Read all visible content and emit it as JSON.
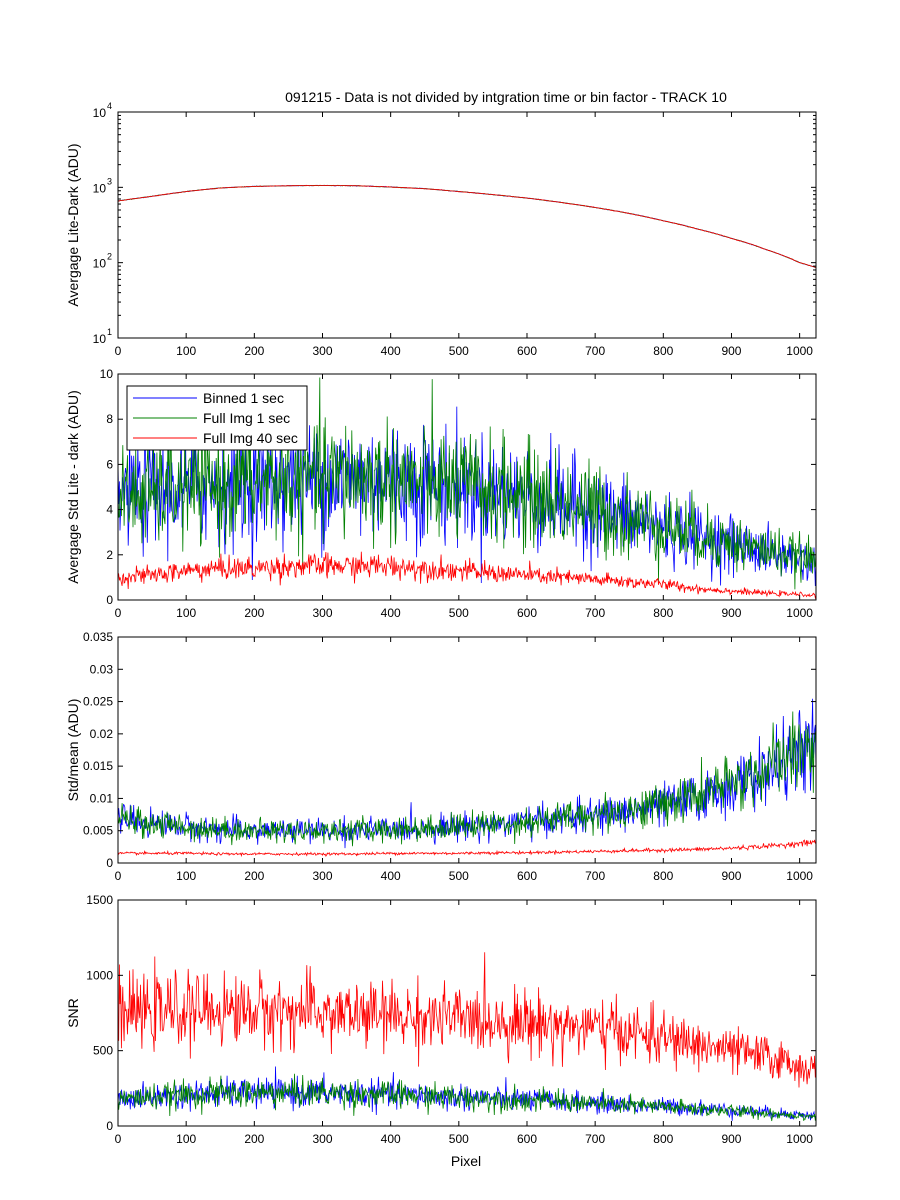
{
  "figure": {
    "background": "#ffffff"
  },
  "chart_data": [
    {
      "type": "line",
      "title": "091215 - Data is not divided by intgration time or bin factor - TRACK 10",
      "xlabel": "",
      "ylabel": "Avergage Lite-Dark (ADU)",
      "xlim": [
        0,
        1024
      ],
      "ylim": [
        10,
        10000
      ],
      "yscale": "log",
      "xticks": [
        0,
        100,
        200,
        300,
        400,
        500,
        600,
        700,
        800,
        900,
        1000
      ],
      "yticks": [
        {
          "v": 10,
          "base": "10",
          "exp": "1"
        },
        {
          "v": 100,
          "base": "10",
          "exp": "2"
        },
        {
          "v": 1000,
          "base": "10",
          "exp": "3"
        },
        {
          "v": 10000,
          "base": "10",
          "exp": "4"
        }
      ],
      "grid": false,
      "series": [
        {
          "color": "#0000ff",
          "x": [
            0,
            50,
            100,
            150,
            200,
            250,
            300,
            350,
            400,
            450,
            500,
            550,
            600,
            650,
            700,
            750,
            800,
            850,
            900,
            950,
            1000,
            1024
          ],
          "values": [
            660,
            760,
            880,
            980,
            1030,
            1050,
            1060,
            1050,
            1010,
            960,
            880,
            800,
            720,
            630,
            540,
            450,
            360,
            280,
            210,
            150,
            100,
            86
          ]
        },
        {
          "color": "#008000",
          "x": [
            0,
            50,
            100,
            150,
            200,
            250,
            300,
            350,
            400,
            450,
            500,
            550,
            600,
            650,
            700,
            750,
            800,
            850,
            900,
            950,
            1000,
            1024
          ],
          "values": [
            660,
            760,
            880,
            980,
            1030,
            1050,
            1060,
            1050,
            1010,
            960,
            880,
            800,
            720,
            630,
            540,
            450,
            360,
            280,
            210,
            150,
            100,
            86
          ]
        },
        {
          "color": "#ff0000",
          "x": [
            0,
            50,
            100,
            150,
            200,
            250,
            300,
            350,
            400,
            450,
            500,
            550,
            600,
            650,
            700,
            750,
            800,
            850,
            900,
            950,
            1000,
            1024
          ],
          "values": [
            660,
            760,
            880,
            980,
            1030,
            1050,
            1060,
            1050,
            1010,
            960,
            880,
            800,
            720,
            630,
            540,
            450,
            360,
            280,
            210,
            150,
            100,
            86
          ]
        }
      ]
    },
    {
      "type": "line",
      "title": "",
      "xlabel": "",
      "ylabel": "Avergage Std Lite - dark (ADU)",
      "xlim": [
        0,
        1024
      ],
      "ylim": [
        0,
        10
      ],
      "xticks": [
        0,
        100,
        200,
        300,
        400,
        500,
        600,
        700,
        800,
        900,
        1000
      ],
      "yticks": [
        0,
        2,
        4,
        6,
        8,
        10
      ],
      "grid": false,
      "legend_position": "top-left",
      "series": [
        {
          "name": "Binned 1 sec",
          "color": "#0000ff",
          "x": [
            0,
            50,
            100,
            150,
            200,
            250,
            300,
            350,
            400,
            450,
            500,
            550,
            600,
            650,
            700,
            750,
            800,
            850,
            900,
            950,
            1000,
            1024
          ],
          "values": [
            4.6,
            4.8,
            4.9,
            5.1,
            5.2,
            5.3,
            5.4,
            5.4,
            5.3,
            5.2,
            5.0,
            4.8,
            4.6,
            4.3,
            3.9,
            3.6,
            3.2,
            2.8,
            2.5,
            2.1,
            1.8,
            1.6
          ]
        },
        {
          "name": "Full Img 1 sec",
          "color": "#008000",
          "x": [
            0,
            50,
            100,
            150,
            200,
            250,
            300,
            350,
            400,
            450,
            500,
            550,
            600,
            650,
            700,
            750,
            800,
            850,
            900,
            950,
            1000,
            1024
          ],
          "values": [
            4.5,
            4.7,
            4.9,
            5.1,
            5.2,
            5.3,
            5.4,
            5.4,
            5.3,
            5.2,
            5.0,
            4.8,
            4.6,
            4.3,
            4.0,
            3.6,
            3.3,
            2.9,
            2.5,
            2.2,
            1.9,
            1.7
          ]
        },
        {
          "name": "Full Img 40 sec",
          "color": "#ff0000",
          "x": [
            0,
            50,
            100,
            150,
            200,
            250,
            300,
            350,
            400,
            450,
            500,
            550,
            600,
            650,
            700,
            750,
            800,
            850,
            900,
            950,
            1000,
            1024
          ],
          "values": [
            1.0,
            1.1,
            1.3,
            1.4,
            1.4,
            1.5,
            1.5,
            1.5,
            1.5,
            1.4,
            1.3,
            1.2,
            1.1,
            1.0,
            0.9,
            0.8,
            0.7,
            0.5,
            0.4,
            0.3,
            0.25,
            0.2
          ]
        }
      ]
    },
    {
      "type": "line",
      "title": "",
      "xlabel": "",
      "ylabel": "Std/mean (ADU)",
      "xlim": [
        0,
        1024
      ],
      "ylim": [
        0,
        0.035
      ],
      "xticks": [
        0,
        100,
        200,
        300,
        400,
        500,
        600,
        700,
        800,
        900,
        1000
      ],
      "yticks": [
        0,
        0.005,
        0.01,
        0.015,
        0.02,
        0.025,
        0.03,
        0.035
      ],
      "grid": false,
      "series": [
        {
          "color": "#0000ff",
          "x": [
            0,
            50,
            100,
            150,
            200,
            250,
            300,
            350,
            400,
            450,
            500,
            550,
            600,
            650,
            700,
            750,
            800,
            850,
            900,
            950,
            1000,
            1024
          ],
          "values": [
            0.0068,
            0.0062,
            0.0056,
            0.0052,
            0.005,
            0.005,
            0.005,
            0.0051,
            0.0052,
            0.0054,
            0.0057,
            0.006,
            0.0064,
            0.0068,
            0.0073,
            0.008,
            0.009,
            0.01,
            0.0118,
            0.014,
            0.017,
            0.0185
          ]
        },
        {
          "color": "#008000",
          "x": [
            0,
            50,
            100,
            150,
            200,
            250,
            300,
            350,
            400,
            450,
            500,
            550,
            600,
            650,
            700,
            750,
            800,
            850,
            900,
            950,
            1000,
            1024
          ],
          "values": [
            0.0067,
            0.0061,
            0.0056,
            0.0052,
            0.005,
            0.005,
            0.005,
            0.0051,
            0.0052,
            0.0054,
            0.0057,
            0.006,
            0.0064,
            0.0069,
            0.0075,
            0.0082,
            0.0092,
            0.0104,
            0.0122,
            0.0145,
            0.0175,
            0.019
          ]
        },
        {
          "color": "#ff0000",
          "x": [
            0,
            50,
            100,
            150,
            200,
            250,
            300,
            350,
            400,
            450,
            500,
            550,
            600,
            650,
            700,
            750,
            800,
            850,
            900,
            950,
            1000,
            1024
          ],
          "values": [
            0.0015,
            0.0015,
            0.0015,
            0.0014,
            0.0014,
            0.0014,
            0.0014,
            0.0014,
            0.0015,
            0.0015,
            0.0015,
            0.0016,
            0.0016,
            0.0017,
            0.0018,
            0.0019,
            0.002,
            0.0021,
            0.0023,
            0.0026,
            0.003,
            0.0033
          ]
        }
      ]
    },
    {
      "type": "line",
      "title": "",
      "xlabel": "Pixel",
      "ylabel": "SNR",
      "xlim": [
        0,
        1024
      ],
      "ylim": [
        0,
        1500
      ],
      "xticks": [
        0,
        100,
        200,
        300,
        400,
        500,
        600,
        700,
        800,
        900,
        1000
      ],
      "yticks": [
        0,
        500,
        1000,
        1500
      ],
      "grid": false,
      "series": [
        {
          "color": "#0000ff",
          "x": [
            0,
            50,
            100,
            150,
            200,
            250,
            300,
            350,
            400,
            450,
            500,
            550,
            600,
            650,
            700,
            750,
            800,
            850,
            900,
            950,
            1000,
            1024
          ],
          "values": [
            175,
            190,
            205,
            215,
            220,
            222,
            220,
            215,
            208,
            200,
            192,
            185,
            175,
            165,
            150,
            140,
            130,
            120,
            105,
            90,
            75,
            65
          ]
        },
        {
          "color": "#008000",
          "x": [
            0,
            50,
            100,
            150,
            200,
            250,
            300,
            350,
            400,
            450,
            500,
            550,
            600,
            650,
            700,
            750,
            800,
            850,
            900,
            950,
            1000,
            1024
          ],
          "values": [
            178,
            192,
            206,
            216,
            220,
            222,
            220,
            214,
            207,
            199,
            190,
            182,
            172,
            162,
            148,
            138,
            126,
            115,
            100,
            85,
            72,
            62
          ]
        },
        {
          "color": "#ff0000",
          "x": [
            0,
            50,
            100,
            150,
            200,
            250,
            300,
            350,
            400,
            450,
            500,
            550,
            600,
            650,
            700,
            750,
            800,
            850,
            900,
            950,
            1000,
            1024
          ],
          "values": [
            740,
            760,
            770,
            770,
            770,
            760,
            750,
            740,
            730,
            720,
            710,
            700,
            690,
            670,
            650,
            620,
            580,
            540,
            500,
            460,
            400,
            360
          ]
        }
      ]
    }
  ]
}
